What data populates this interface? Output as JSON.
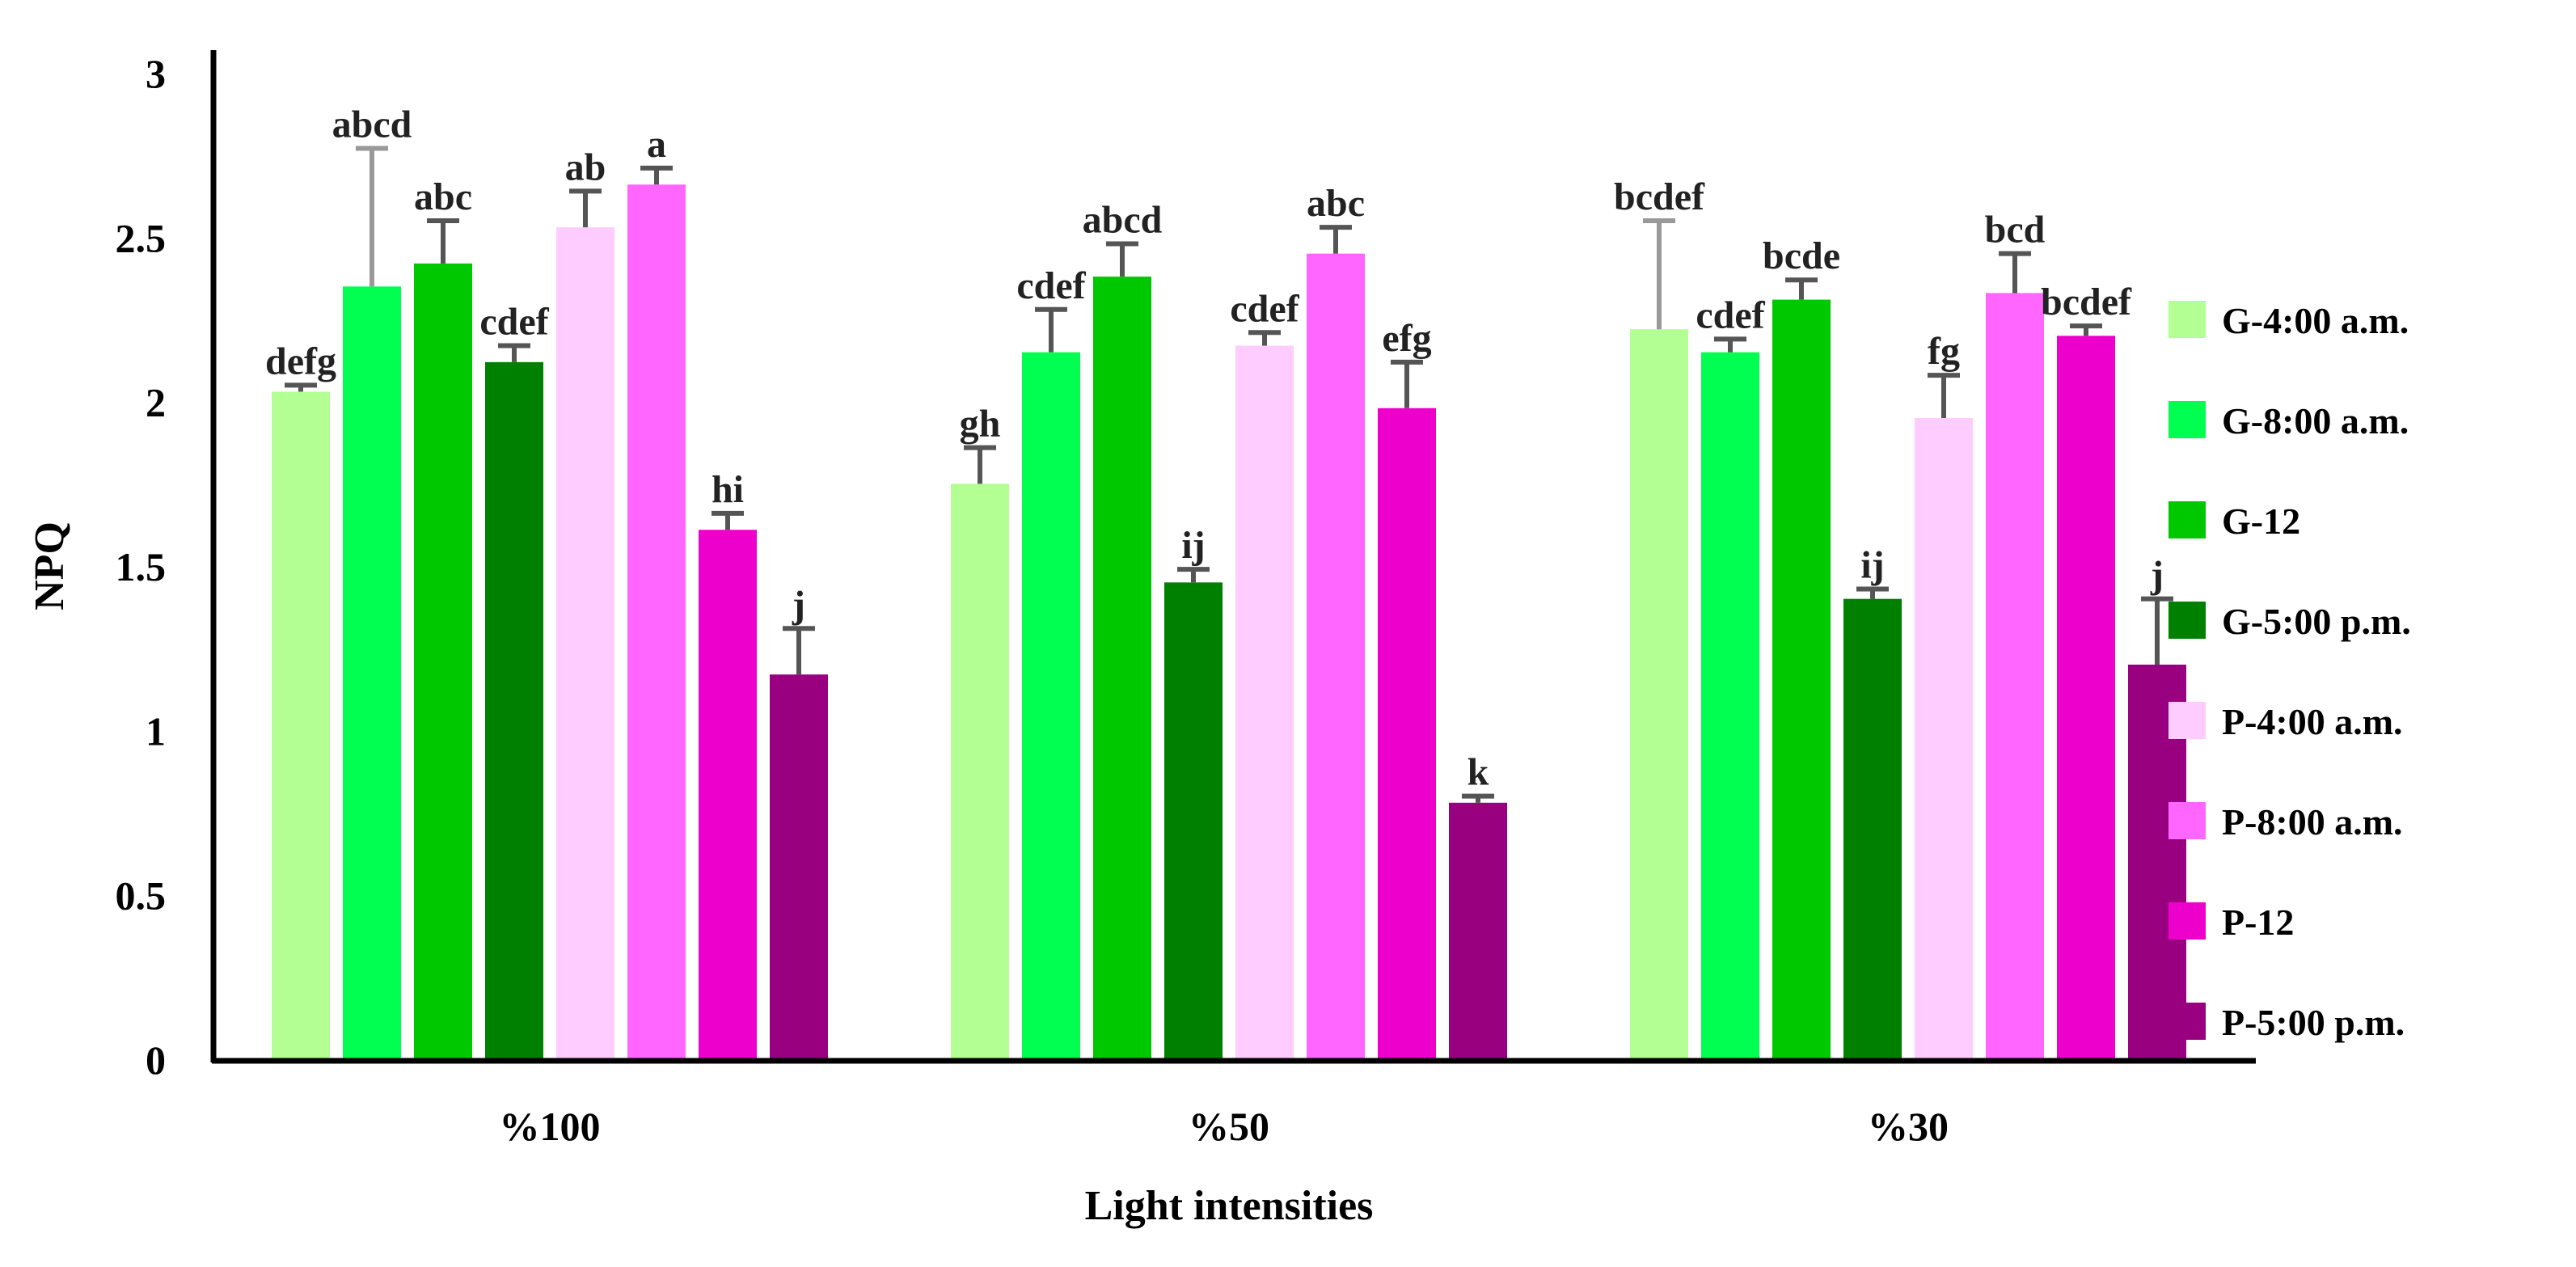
{
  "chart_data": {
    "type": "bar",
    "title": "",
    "xlabel": "Light intensities",
    "ylabel": "NPQ",
    "ylim": [
      0,
      3
    ],
    "yticks": [
      "0",
      "0.5",
      "1",
      "1.5",
      "2",
      "2.5",
      "3"
    ],
    "categories": [
      "%100",
      "%50",
      "%30"
    ],
    "legend_position": "right",
    "grid": false,
    "series": [
      {
        "name": "G-4:00 a.m.",
        "color": "#b3ff94",
        "values": [
          2.03,
          1.75,
          2.22
        ],
        "errors": [
          0.02,
          0.11,
          0.33
        ],
        "letters": [
          "defg",
          "gh",
          "bcdef"
        ],
        "error_color": "#555555"
      },
      {
        "name": "G-8:00 a.m.",
        "color": "#00ff50",
        "values": [
          2.35,
          2.15,
          2.15
        ],
        "errors": [
          0.42,
          0.13,
          0.04
        ],
        "letters": [
          "abcd",
          "cdef",
          "cdef"
        ]
      },
      {
        "name": "G-12",
        "color": "#00c800",
        "values": [
          2.42,
          2.38,
          2.31
        ],
        "errors": [
          0.13,
          0.1,
          0.06
        ],
        "letters": [
          "abc",
          "abcd",
          "bcde"
        ]
      },
      {
        "name": "G-5:00 p.m.",
        "color": "#008000",
        "values": [
          2.12,
          1.45,
          1.4
        ],
        "errors": [
          0.05,
          0.04,
          0.03
        ],
        "letters": [
          "cdef",
          "ij",
          "ij"
        ]
      },
      {
        "name": "P-4:00 a.m.",
        "color": "#ffccff",
        "values": [
          2.53,
          2.17,
          1.95
        ],
        "errors": [
          0.11,
          0.04,
          0.13
        ],
        "letters": [
          "ab",
          "cdef",
          "fg"
        ]
      },
      {
        "name": "P-8:00 a.m.",
        "color": "#ff66ff",
        "values": [
          2.66,
          2.45,
          2.33
        ],
        "errors": [
          0.05,
          0.08,
          0.12
        ],
        "letters": [
          "a",
          "abc",
          "bcd"
        ]
      },
      {
        "name": "P-12",
        "color": "#ee00cc",
        "values": [
          1.61,
          1.98,
          2.2
        ],
        "errors": [
          0.05,
          0.14,
          0.03
        ],
        "letters": [
          "hi",
          "efg",
          "bcdef"
        ]
      },
      {
        "name": "P-5:00 p.m.",
        "color": "#990080",
        "values": [
          1.17,
          0.78,
          1.2
        ],
        "errors": [
          0.14,
          0.02,
          0.2
        ],
        "letters": [
          "j",
          "k",
          "j"
        ]
      }
    ]
  }
}
